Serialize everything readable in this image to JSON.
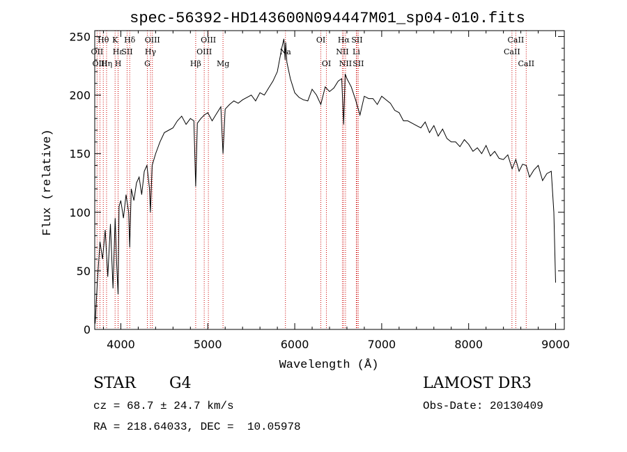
{
  "chart_data": {
    "type": "line",
    "title": "spec-56392-HD143600N094447M01_sp04-010.fits",
    "xlabel": "Wavelength (Å)",
    "ylabel": "Flux (relative)",
    "xlim": [
      3700,
      9100
    ],
    "ylim": [
      0,
      255
    ],
    "xticks": [
      4000,
      5000,
      6000,
      7000,
      8000,
      9000
    ],
    "yticks": [
      0,
      50,
      100,
      150,
      200,
      250
    ],
    "grid": false,
    "line_color": "#000000",
    "marker_color": "#cc0000",
    "series": [
      {
        "x": [
          3705,
          3730,
          3760,
          3790,
          3820,
          3850,
          3880,
          3910,
          3935,
          3950,
          3968,
          3980,
          4000,
          4030,
          4060,
          4090,
          4102,
          4120,
          4150,
          4180,
          4210,
          4240,
          4270,
          4300,
          4330,
          4340,
          4360,
          4400,
          4450,
          4500,
          4550,
          4600,
          4650,
          4700,
          4750,
          4800,
          4840,
          4861,
          4880,
          4920,
          4960,
          5000,
          5050,
          5100,
          5150,
          5175,
          5200,
          5250,
          5300,
          5350,
          5400,
          5450,
          5500,
          5550,
          5600,
          5650,
          5700,
          5750,
          5800,
          5850,
          5875,
          5890,
          5896,
          5910,
          5950,
          6000,
          6050,
          6100,
          6150,
          6200,
          6250,
          6300,
          6350,
          6400,
          6450,
          6500,
          6540,
          6563,
          6580,
          6600,
          6650,
          6700,
          6750,
          6800,
          6850,
          6900,
          6950,
          7000,
          7050,
          7100,
          7150,
          7200,
          7250,
          7300,
          7350,
          7400,
          7450,
          7500,
          7550,
          7600,
          7650,
          7700,
          7750,
          7800,
          7850,
          7900,
          7950,
          8000,
          8050,
          8100,
          8150,
          8200,
          8250,
          8300,
          8350,
          8400,
          8450,
          8500,
          8542,
          8580,
          8620,
          8662,
          8700,
          8750,
          8800,
          8850,
          8900,
          8950,
          8980,
          9000
        ],
        "y": [
          5,
          40,
          75,
          60,
          85,
          45,
          90,
          35,
          95,
          60,
          30,
          105,
          110,
          95,
          115,
          100,
          70,
          120,
          110,
          125,
          130,
          115,
          135,
          140,
          120,
          100,
          140,
          150,
          160,
          168,
          170,
          172,
          178,
          182,
          175,
          180,
          178,
          122,
          176,
          180,
          183,
          185,
          178,
          184,
          190,
          150,
          188,
          192,
          195,
          193,
          196,
          198,
          200,
          195,
          202,
          200,
          206,
          212,
          220,
          240,
          248,
          230,
          245,
          228,
          214,
          202,
          198,
          196,
          195,
          205,
          200,
          192,
          207,
          203,
          206,
          212,
          214,
          175,
          218,
          214,
          207,
          196,
          183,
          199,
          197,
          197,
          192,
          199,
          196,
          193,
          187,
          185,
          178,
          178,
          176,
          174,
          172,
          177,
          168,
          174,
          165,
          171,
          163,
          160,
          160,
          156,
          162,
          158,
          152,
          155,
          150,
          157,
          148,
          152,
          146,
          145,
          149,
          137,
          145,
          135,
          141,
          140,
          130,
          136,
          140,
          127,
          133,
          135,
          100,
          40
        ]
      }
    ],
    "line_markers": [
      {
        "label": "Hθ",
        "x": 3798,
        "row": 1
      },
      {
        "label": "OII",
        "x": 3727,
        "row": 2
      },
      {
        "label": "OIII",
        "x": 3760,
        "row": 3
      },
      {
        "label": "K",
        "x": 3934,
        "row": 1
      },
      {
        "label": "Hε",
        "x": 3968,
        "row": 2
      },
      {
        "label": "Hη",
        "x": 3836,
        "row": 3
      },
      {
        "label": "H",
        "x": 3969,
        "row": 3
      },
      {
        "label": "Hδ",
        "x": 4102,
        "row": 1
      },
      {
        "label": "SII",
        "x": 4072,
        "row": 2
      },
      {
        "label": "OIII",
        "x": 4363,
        "row": 1
      },
      {
        "label": "Hγ",
        "x": 4341,
        "row": 2
      },
      {
        "label": "G",
        "x": 4305,
        "row": 3
      },
      {
        "label": "Hβ",
        "x": 4861,
        "row": 3
      },
      {
        "label": "OIII",
        "x": 5007,
        "row": 1
      },
      {
        "label": "OIII",
        "x": 4959,
        "row": 2
      },
      {
        "label": "Mg",
        "x": 5175,
        "row": 3
      },
      {
        "label": "Na",
        "x": 5893,
        "row": 2
      },
      {
        "label": "OI",
        "x": 6300,
        "row": 1
      },
      {
        "label": "OI",
        "x": 6364,
        "row": 3
      },
      {
        "label": "Hα",
        "x": 6563,
        "row": 1
      },
      {
        "label": "SII",
        "x": 6716,
        "row": 1
      },
      {
        "label": "NII",
        "x": 6548,
        "row": 2
      },
      {
        "label": "Li",
        "x": 6708,
        "row": 2
      },
      {
        "label": "NII",
        "x": 6584,
        "row": 3
      },
      {
        "label": "SII",
        "x": 6731,
        "row": 3
      },
      {
        "label": "CaII",
        "x": 8542,
        "row": 1
      },
      {
        "label": "CaII",
        "x": 8498,
        "row": 2
      },
      {
        "label": "CaII",
        "x": 8662,
        "row": 3
      }
    ]
  },
  "footer": {
    "object_type": "STAR",
    "subclass": "G4",
    "survey": "LAMOST DR3",
    "velocity": "cz = 68.7 ± 24.7 km/s",
    "obs_date": "Obs-Date: 20130409",
    "coords": "RA = 218.64033, DEC =  10.05978"
  }
}
